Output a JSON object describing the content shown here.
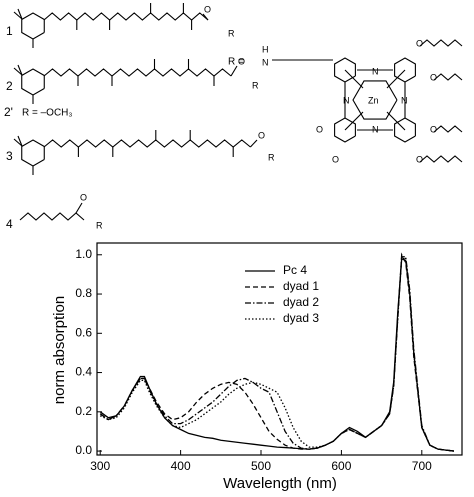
{
  "structures": {
    "labels": [
      "1",
      "2",
      "2'",
      "3",
      "4"
    ],
    "r_methoxy": "R = –OCH₃",
    "r": "R",
    "r_eq": "R =",
    "atoms": {
      "N": "N",
      "H": "H",
      "O": "O",
      "Zn": "Zn"
    }
  },
  "chart_data": {
    "type": "line",
    "xlabel": "Wavelength (nm)",
    "ylabel": "norm absorption",
    "x": [
      300,
      310,
      320,
      330,
      340,
      350,
      355,
      360,
      370,
      380,
      390,
      400,
      410,
      420,
      430,
      440,
      450,
      460,
      470,
      480,
      490,
      500,
      510,
      520,
      530,
      540,
      550,
      560,
      570,
      580,
      590,
      600,
      610,
      620,
      630,
      640,
      650,
      660,
      665,
      670,
      675,
      680,
      685,
      690,
      700,
      710,
      720,
      730,
      740
    ],
    "series": [
      {
        "name": "Pc 4",
        "color": "#000000",
        "style": "solid",
        "values": [
          0.2,
          0.17,
          0.18,
          0.23,
          0.31,
          0.38,
          0.38,
          0.33,
          0.24,
          0.17,
          0.13,
          0.11,
          0.09,
          0.08,
          0.07,
          0.065,
          0.055,
          0.05,
          0.045,
          0.04,
          0.035,
          0.03,
          0.025,
          0.02,
          0.018,
          0.015,
          0.012,
          0.01,
          0.015,
          0.03,
          0.05,
          0.09,
          0.12,
          0.1,
          0.07,
          0.1,
          0.13,
          0.2,
          0.35,
          0.7,
          0.98,
          0.97,
          0.8,
          0.5,
          0.12,
          0.03,
          0.01,
          0.005,
          0
        ]
      },
      {
        "name": "dyad 1",
        "color": "#000000",
        "style": "dashed",
        "values": [
          0.19,
          0.16,
          0.18,
          0.23,
          0.31,
          0.37,
          0.37,
          0.33,
          0.25,
          0.19,
          0.16,
          0.17,
          0.2,
          0.25,
          0.29,
          0.32,
          0.34,
          0.35,
          0.34,
          0.3,
          0.24,
          0.17,
          0.1,
          0.06,
          0.03,
          0.015,
          0.01,
          0.01,
          0.015,
          0.03,
          0.05,
          0.09,
          0.11,
          0.09,
          0.07,
          0.1,
          0.13,
          0.19,
          0.33,
          0.68,
          1.0,
          0.96,
          0.78,
          0.48,
          0.12,
          0.03,
          0.01,
          0.005,
          0
        ]
      },
      {
        "name": "dyad 2",
        "color": "#000000",
        "style": "dashdot",
        "values": [
          0.19,
          0.16,
          0.18,
          0.23,
          0.31,
          0.37,
          0.37,
          0.32,
          0.24,
          0.18,
          0.14,
          0.14,
          0.16,
          0.19,
          0.22,
          0.25,
          0.29,
          0.33,
          0.36,
          0.37,
          0.35,
          0.32,
          0.3,
          0.2,
          0.1,
          0.04,
          0.015,
          0.01,
          0.015,
          0.03,
          0.05,
          0.09,
          0.11,
          0.09,
          0.07,
          0.1,
          0.13,
          0.19,
          0.33,
          0.67,
          0.99,
          0.99,
          0.82,
          0.52,
          0.13,
          0.03,
          0.01,
          0.005,
          0
        ]
      },
      {
        "name": "dyad 3",
        "color": "#000000",
        "style": "dotted",
        "values": [
          0.18,
          0.16,
          0.17,
          0.22,
          0.3,
          0.36,
          0.36,
          0.31,
          0.23,
          0.17,
          0.13,
          0.12,
          0.14,
          0.16,
          0.19,
          0.22,
          0.25,
          0.29,
          0.32,
          0.34,
          0.35,
          0.34,
          0.32,
          0.3,
          0.22,
          0.12,
          0.05,
          0.02,
          0.02,
          0.03,
          0.05,
          0.09,
          0.11,
          0.09,
          0.07,
          0.1,
          0.13,
          0.19,
          0.33,
          0.67,
          0.99,
          0.98,
          0.8,
          0.5,
          0.12,
          0.03,
          0.01,
          0.005,
          0
        ]
      }
    ],
    "xlim": [
      296,
      750
    ],
    "xticks": [
      300,
      400,
      500,
      600,
      700
    ],
    "ylim": [
      -0.02,
      1.06
    ],
    "yticks": [
      {
        "value": 0,
        "label": "0.0"
      },
      {
        "value": 0.2,
        "label": "0.2"
      },
      {
        "value": 0.4,
        "label": "0.4"
      },
      {
        "value": 0.6,
        "label": "0.6"
      },
      {
        "value": 0.8,
        "label": "0.8"
      },
      {
        "value": 1.0,
        "label": "1.0"
      }
    ],
    "legend": "upper center"
  }
}
